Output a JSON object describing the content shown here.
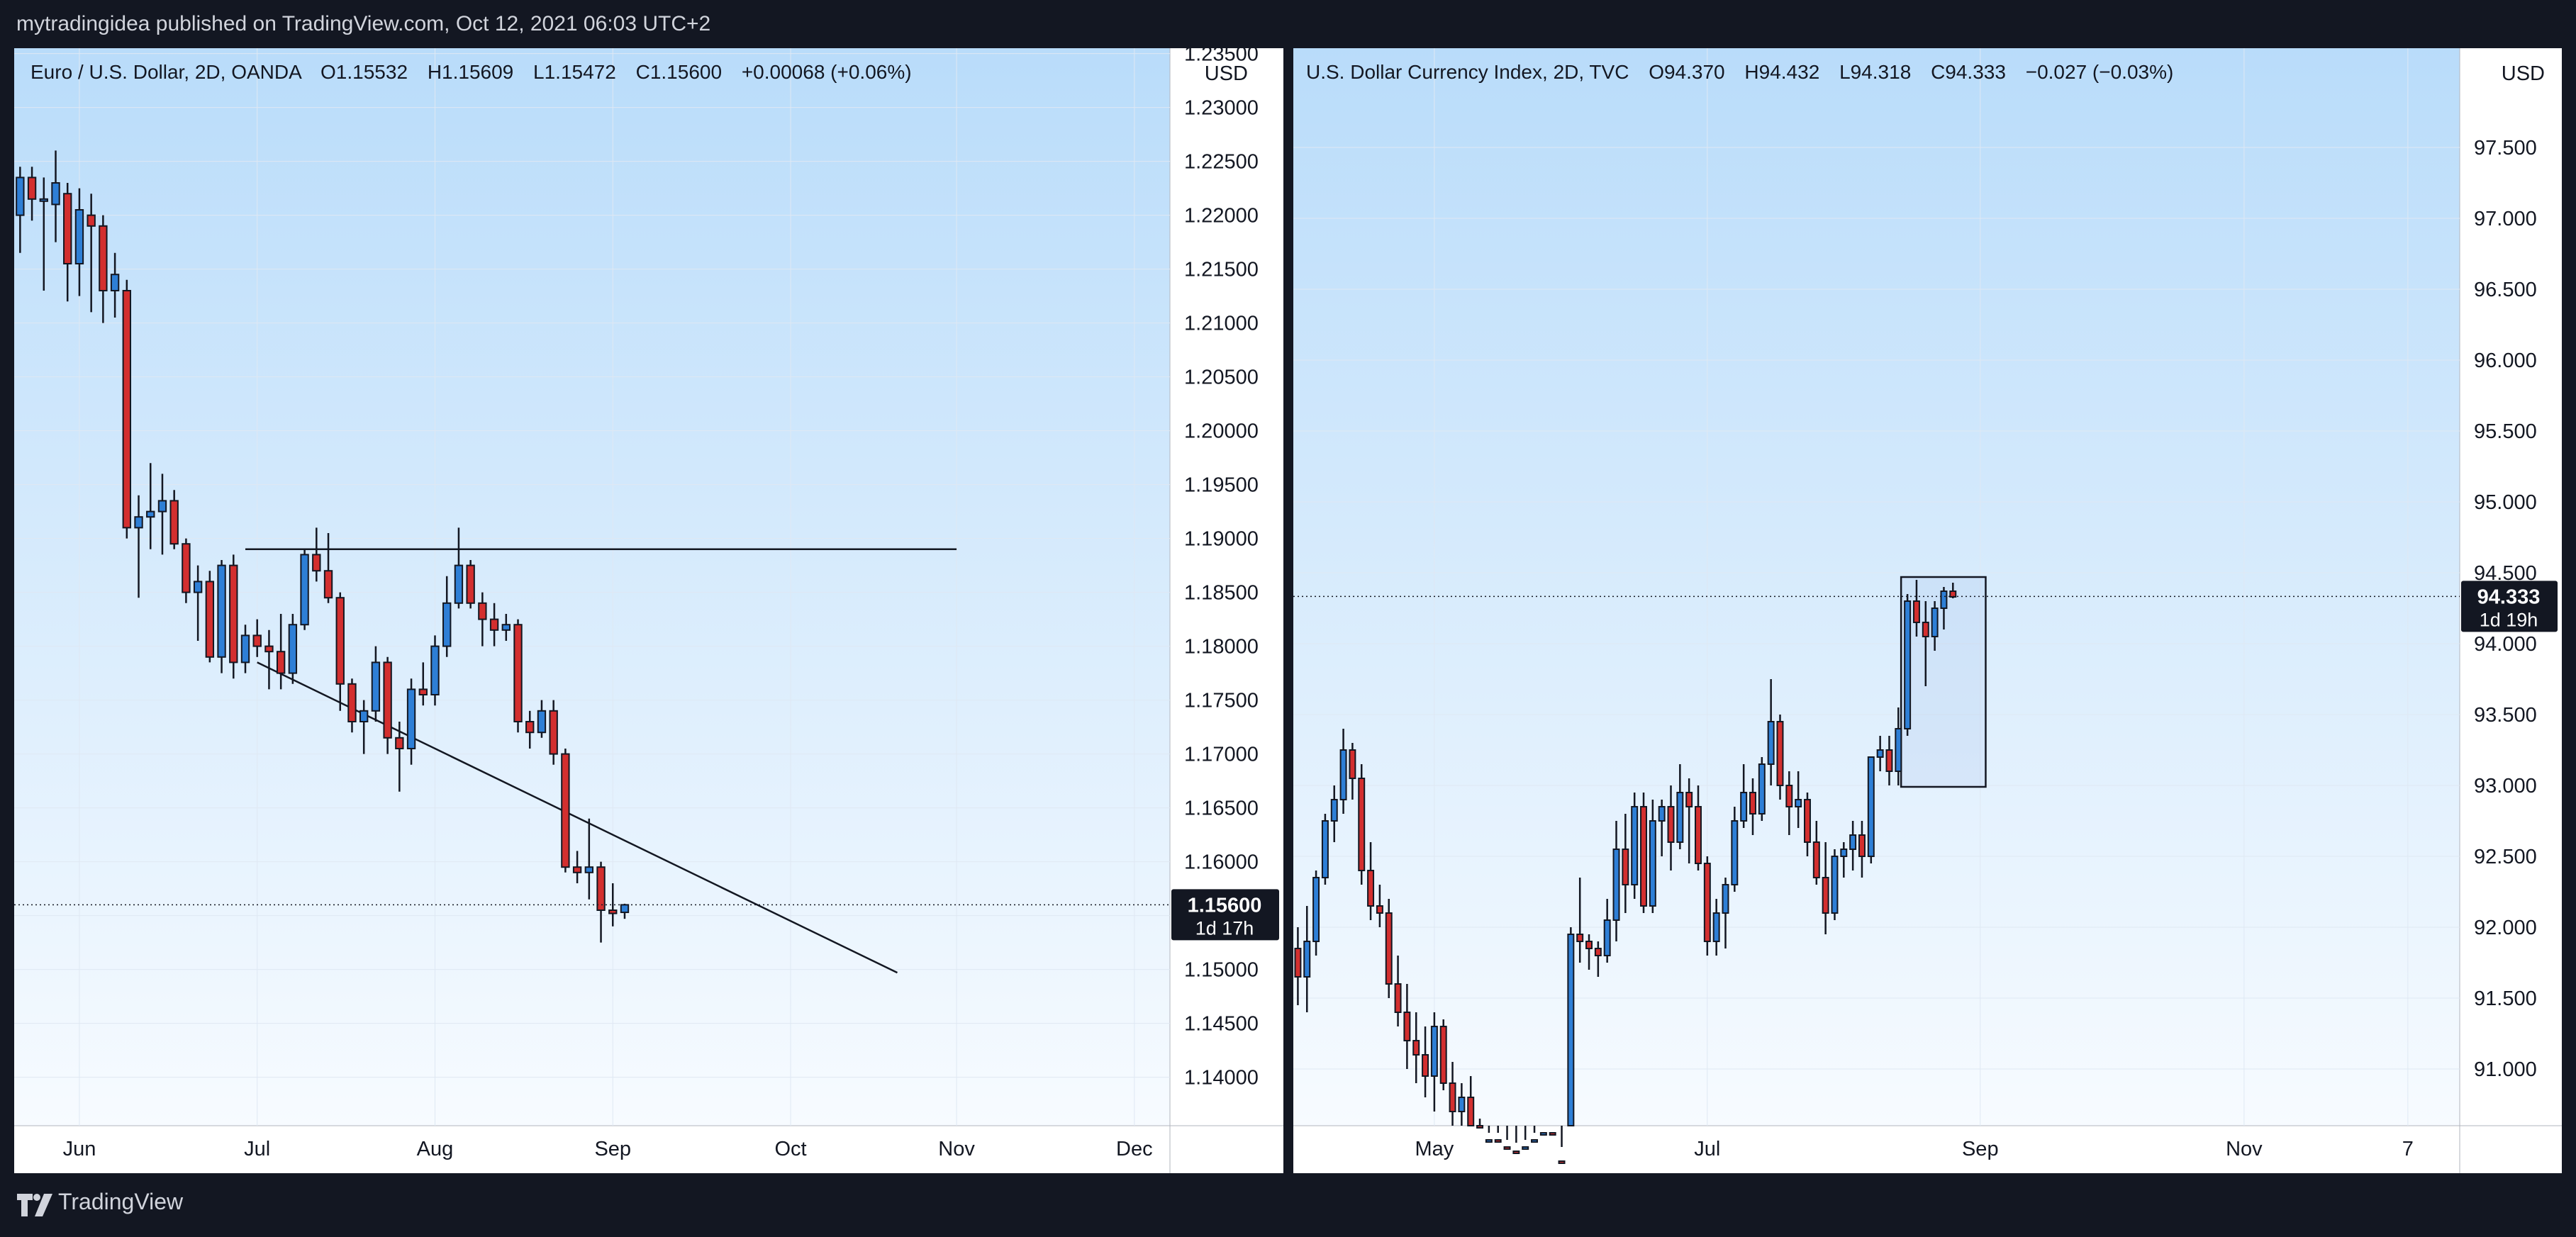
{
  "header": {
    "publish_line": "mytradingidea published on TradingView.com, Oct 12, 2021 06:03 UTC+2"
  },
  "footer": {
    "brand": "TradingView"
  },
  "colors": {
    "bull": "#2e7fd6",
    "bear": "#d32f2f",
    "wick": "#131722",
    "bg_top": "#b9dcfa",
    "bg_bottom": "#f7fbff",
    "axis_bg": "#ffffff",
    "price_label_bg": "#131722",
    "page_bg": "#131722"
  },
  "chart_data": [
    {
      "type": "candlestick",
      "symbol": "Euro / U.S. Dollar, 2D, OANDA",
      "ohlc_readout": {
        "o": "O1.15532",
        "h": "H1.15609",
        "l": "L1.15472",
        "c": "C1.15600",
        "change": "+0.00068 (+0.06%)"
      },
      "currency": "USD",
      "y_range": [
        1.1355,
        1.2355
      ],
      "y_ticks": [
        "1.23500",
        "1.23000",
        "1.22500",
        "1.22000",
        "1.21500",
        "1.21000",
        "1.20500",
        "1.20000",
        "1.19500",
        "1.19000",
        "1.18500",
        "1.18000",
        "1.17500",
        "1.17000",
        "1.16500",
        "1.16000",
        "1.15500",
        "1.15000",
        "1.14500",
        "1.14000"
      ],
      "x_ticks": [
        {
          "label": "Jun",
          "bar": 2
        },
        {
          "label": "Jul",
          "bar": 17
        },
        {
          "label": "Aug",
          "bar": 32
        },
        {
          "label": "Sep",
          "bar": 47
        },
        {
          "label": "Oct",
          "bar": 62
        },
        {
          "label": "Nov",
          "bar": 76
        },
        {
          "label": "Dec",
          "bar": 91
        }
      ],
      "bar_range": [
        -3.5,
        94
      ],
      "last_price": "1.15600",
      "last_value": 1.156,
      "countdown": "1d 17h",
      "candles": [
        [
          -3,
          1.22,
          1.2245,
          1.2165,
          1.2235
        ],
        [
          -2,
          1.2235,
          1.2245,
          1.2195,
          1.2215
        ],
        [
          -1,
          1.2215,
          1.2235,
          1.213,
          1.2215
        ],
        [
          0,
          1.221,
          1.226,
          1.2175,
          1.223
        ],
        [
          1,
          1.222,
          1.223,
          1.212,
          1.2155
        ],
        [
          2,
          1.2155,
          1.2225,
          1.2125,
          1.2205
        ],
        [
          3,
          1.22,
          1.222,
          1.211,
          1.219
        ],
        [
          4,
          1.219,
          1.22,
          1.21,
          1.213
        ],
        [
          5,
          1.213,
          1.2165,
          1.2105,
          1.2145
        ],
        [
          6,
          1.213,
          1.214,
          1.19,
          1.191
        ],
        [
          7,
          1.191,
          1.194,
          1.1845,
          1.192
        ],
        [
          8,
          1.192,
          1.197,
          1.189,
          1.1925
        ],
        [
          9,
          1.1925,
          1.196,
          1.1885,
          1.1935
        ],
        [
          10,
          1.1935,
          1.1945,
          1.189,
          1.1895
        ],
        [
          11,
          1.1895,
          1.19,
          1.184,
          1.185
        ],
        [
          12,
          1.185,
          1.1875,
          1.1805,
          1.186
        ],
        [
          13,
          1.186,
          1.187,
          1.1785,
          1.179
        ],
        [
          14,
          1.179,
          1.188,
          1.1775,
          1.1875
        ],
        [
          15,
          1.1875,
          1.1885,
          1.177,
          1.1785
        ],
        [
          16,
          1.1785,
          1.182,
          1.1775,
          1.181
        ],
        [
          17,
          1.181,
          1.1825,
          1.179,
          1.18
        ],
        [
          18,
          1.18,
          1.1815,
          1.176,
          1.1795
        ],
        [
          19,
          1.1795,
          1.183,
          1.176,
          1.1775
        ],
        [
          20,
          1.1775,
          1.183,
          1.1765,
          1.182
        ],
        [
          21,
          1.182,
          1.189,
          1.1815,
          1.1885
        ],
        [
          22,
          1.1885,
          1.191,
          1.186,
          1.187
        ],
        [
          23,
          1.187,
          1.1905,
          1.184,
          1.1845
        ],
        [
          24,
          1.1845,
          1.185,
          1.174,
          1.1765
        ],
        [
          25,
          1.1765,
          1.177,
          1.172,
          1.173
        ],
        [
          26,
          1.173,
          1.175,
          1.17,
          1.174
        ],
        [
          27,
          1.174,
          1.18,
          1.173,
          1.1785
        ],
        [
          28,
          1.1785,
          1.179,
          1.17,
          1.1715
        ],
        [
          29,
          1.1715,
          1.173,
          1.1665,
          1.1705
        ],
        [
          30,
          1.1705,
          1.177,
          1.169,
          1.176
        ],
        [
          31,
          1.176,
          1.1785,
          1.1745,
          1.1755
        ],
        [
          32,
          1.1755,
          1.181,
          1.1745,
          1.18
        ],
        [
          33,
          1.18,
          1.1865,
          1.179,
          1.184
        ],
        [
          34,
          1.184,
          1.191,
          1.1835,
          1.1875
        ],
        [
          35,
          1.1875,
          1.188,
          1.1835,
          1.184
        ],
        [
          36,
          1.184,
          1.185,
          1.18,
          1.1825
        ],
        [
          37,
          1.1825,
          1.184,
          1.18,
          1.1815
        ],
        [
          38,
          1.1815,
          1.183,
          1.1805,
          1.182
        ],
        [
          39,
          1.182,
          1.1825,
          1.172,
          1.173
        ],
        [
          40,
          1.173,
          1.174,
          1.1705,
          1.172
        ],
        [
          41,
          1.172,
          1.175,
          1.1715,
          1.174
        ],
        [
          42,
          1.174,
          1.175,
          1.169,
          1.17
        ],
        [
          43,
          1.17,
          1.1705,
          1.159,
          1.1595
        ],
        [
          44,
          1.1595,
          1.161,
          1.158,
          1.159
        ],
        [
          45,
          1.159,
          1.164,
          1.1565,
          1.1595
        ],
        [
          46,
          1.1595,
          1.16,
          1.1525,
          1.1555
        ],
        [
          47,
          1.1555,
          1.158,
          1.154,
          1.1552
        ],
        [
          48,
          1.1553,
          1.1561,
          1.1547,
          1.156
        ]
      ],
      "lines": [
        {
          "from": [
            16,
            1.189
          ],
          "to": [
            76,
            1.189
          ]
        },
        {
          "from": [
            17,
            1.1785
          ],
          "to": [
            71,
            1.1497
          ]
        }
      ]
    },
    {
      "type": "candlestick",
      "symbol": "U.S. Dollar Currency Index, 2D, TVC",
      "ohlc_readout": {
        "o": "O94.370",
        "h": "H94.432",
        "l": "L94.318",
        "c": "C94.333",
        "change": "−0.027 (−0.03%)"
      },
      "currency": "USD",
      "y_range": [
        90.6,
        98.2
      ],
      "y_ticks": [
        "97.500",
        "97.000",
        "96.500",
        "96.000",
        "95.500",
        "95.000",
        "94.500",
        "94.000",
        "93.500",
        "93.000",
        "92.500",
        "92.000",
        "91.500",
        "91.000"
      ],
      "x_ticks": [
        {
          "label": "May",
          "bar": 15
        },
        {
          "label": "Jul",
          "bar": 45
        },
        {
          "label": "Sep",
          "bar": 75
        },
        {
          "label": "Nov",
          "bar": 104
        },
        {
          "label": "7",
          "bar": 122
        }
      ],
      "bar_range": [
        -0.5,
        127.7
      ],
      "last_price": "94.333",
      "last_value": 94.333,
      "countdown": "1d 19h",
      "candles": [
        [
          0,
          91.85,
          92.0,
          91.45,
          91.65
        ],
        [
          1,
          91.65,
          92.15,
          91.4,
          91.9
        ],
        [
          2,
          91.9,
          92.4,
          91.8,
          92.35
        ],
        [
          3,
          92.35,
          92.8,
          92.3,
          92.75
        ],
        [
          4,
          92.75,
          93.0,
          92.6,
          92.9
        ],
        [
          5,
          92.9,
          93.4,
          92.8,
          93.25
        ],
        [
          6,
          93.25,
          93.3,
          92.9,
          93.05
        ],
        [
          7,
          93.05,
          93.15,
          92.3,
          92.4
        ],
        [
          8,
          92.4,
          92.6,
          92.05,
          92.15
        ],
        [
          9,
          92.15,
          92.3,
          92.0,
          92.1
        ],
        [
          10,
          92.1,
          92.2,
          91.5,
          91.6
        ],
        [
          11,
          91.6,
          91.8,
          91.3,
          91.4
        ],
        [
          12,
          91.4,
          91.6,
          91.0,
          91.2
        ],
        [
          13,
          91.2,
          91.4,
          90.9,
          91.1
        ],
        [
          14,
          91.1,
          91.3,
          90.8,
          90.95
        ],
        [
          15,
          90.95,
          91.4,
          90.7,
          91.3
        ],
        [
          16,
          91.3,
          91.35,
          90.85,
          90.9
        ],
        [
          17,
          90.9,
          91.05,
          90.6,
          90.7
        ],
        [
          18,
          90.7,
          90.9,
          90.5,
          90.8
        ],
        [
          19,
          90.8,
          90.95,
          90.55,
          90.6
        ],
        [
          20,
          90.6,
          90.65,
          90.4,
          90.45
        ],
        [
          21,
          90.45,
          90.55,
          90.35,
          90.5
        ],
        [
          22,
          90.5,
          90.55,
          90.4,
          90.45
        ],
        [
          23,
          90.45,
          90.5,
          90.35,
          90.42
        ],
        [
          24,
          90.42,
          90.48,
          90.35,
          90.4
        ],
        [
          25,
          90.4,
          90.5,
          90.3,
          90.45
        ],
        [
          26,
          90.45,
          90.55,
          90.35,
          90.5
        ],
        [
          27,
          90.5,
          90.6,
          90.4,
          90.55
        ],
        [
          28,
          90.55,
          90.6,
          90.3,
          90.35
        ],
        [
          29,
          90.35,
          90.45,
          90.2,
          90.25
        ],
        [
          30,
          90.25,
          92.0,
          90.2,
          91.95
        ],
        [
          31,
          91.95,
          92.35,
          91.75,
          91.9
        ],
        [
          32,
          91.9,
          91.95,
          91.7,
          91.85
        ],
        [
          33,
          91.85,
          91.9,
          91.65,
          91.8
        ],
        [
          34,
          91.8,
          92.2,
          91.75,
          92.05
        ],
        [
          35,
          92.05,
          92.75,
          91.9,
          92.55
        ],
        [
          36,
          92.55,
          92.8,
          92.1,
          92.3
        ],
        [
          37,
          92.3,
          92.95,
          92.2,
          92.85
        ],
        [
          38,
          92.85,
          92.95,
          92.1,
          92.15
        ],
        [
          39,
          92.15,
          92.9,
          92.1,
          92.75
        ],
        [
          40,
          92.75,
          92.9,
          92.5,
          92.85
        ],
        [
          41,
          92.85,
          93.0,
          92.4,
          92.6
        ],
        [
          42,
          92.6,
          93.15,
          92.55,
          92.95
        ],
        [
          43,
          92.95,
          93.05,
          92.45,
          92.85
        ],
        [
          44,
          92.85,
          93.0,
          92.4,
          92.45
        ],
        [
          45,
          92.45,
          92.5,
          91.8,
          91.9
        ],
        [
          46,
          91.9,
          92.2,
          91.8,
          92.1
        ],
        [
          47,
          92.1,
          92.35,
          91.85,
          92.3
        ],
        [
          48,
          92.3,
          92.85,
          92.25,
          92.75
        ],
        [
          49,
          92.75,
          93.15,
          92.7,
          92.95
        ],
        [
          50,
          92.95,
          93.05,
          92.65,
          92.8
        ],
        [
          51,
          92.8,
          93.2,
          92.75,
          93.15
        ],
        [
          52,
          93.15,
          93.75,
          93.0,
          93.45
        ],
        [
          53,
          93.45,
          93.5,
          92.9,
          93.0
        ],
        [
          54,
          93.0,
          93.1,
          92.65,
          92.85
        ],
        [
          55,
          92.85,
          93.1,
          92.7,
          92.9
        ],
        [
          56,
          92.9,
          92.95,
          92.5,
          92.6
        ],
        [
          57,
          92.6,
          92.75,
          92.3,
          92.35
        ],
        [
          58,
          92.35,
          92.6,
          91.95,
          92.1
        ],
        [
          59,
          92.1,
          92.55,
          92.05,
          92.5
        ],
        [
          60,
          92.5,
          92.6,
          92.35,
          92.55
        ],
        [
          61,
          92.55,
          92.75,
          92.4,
          92.65
        ],
        [
          62,
          92.65,
          92.75,
          92.35,
          92.5
        ],
        [
          63,
          92.5,
          93.2,
          92.45,
          93.2
        ],
        [
          64,
          93.2,
          93.35,
          93.1,
          93.25
        ],
        [
          65,
          93.25,
          93.35,
          93.0,
          93.1
        ],
        [
          66,
          93.1,
          93.55,
          93.0,
          93.4
        ],
        [
          67,
          93.4,
          94.35,
          93.35,
          94.3
        ],
        [
          68,
          94.3,
          94.45,
          94.05,
          94.15
        ],
        [
          69,
          94.15,
          94.3,
          93.7,
          94.05
        ],
        [
          70,
          94.05,
          94.3,
          93.95,
          94.25
        ],
        [
          71,
          94.25,
          94.4,
          94.1,
          94.37
        ],
        [
          72,
          94.37,
          94.43,
          94.32,
          94.33
        ]
      ],
      "box": {
        "bar_from": 66.3,
        "bar_to": 75.6,
        "top": 94.47,
        "bottom": 92.99
      }
    }
  ]
}
